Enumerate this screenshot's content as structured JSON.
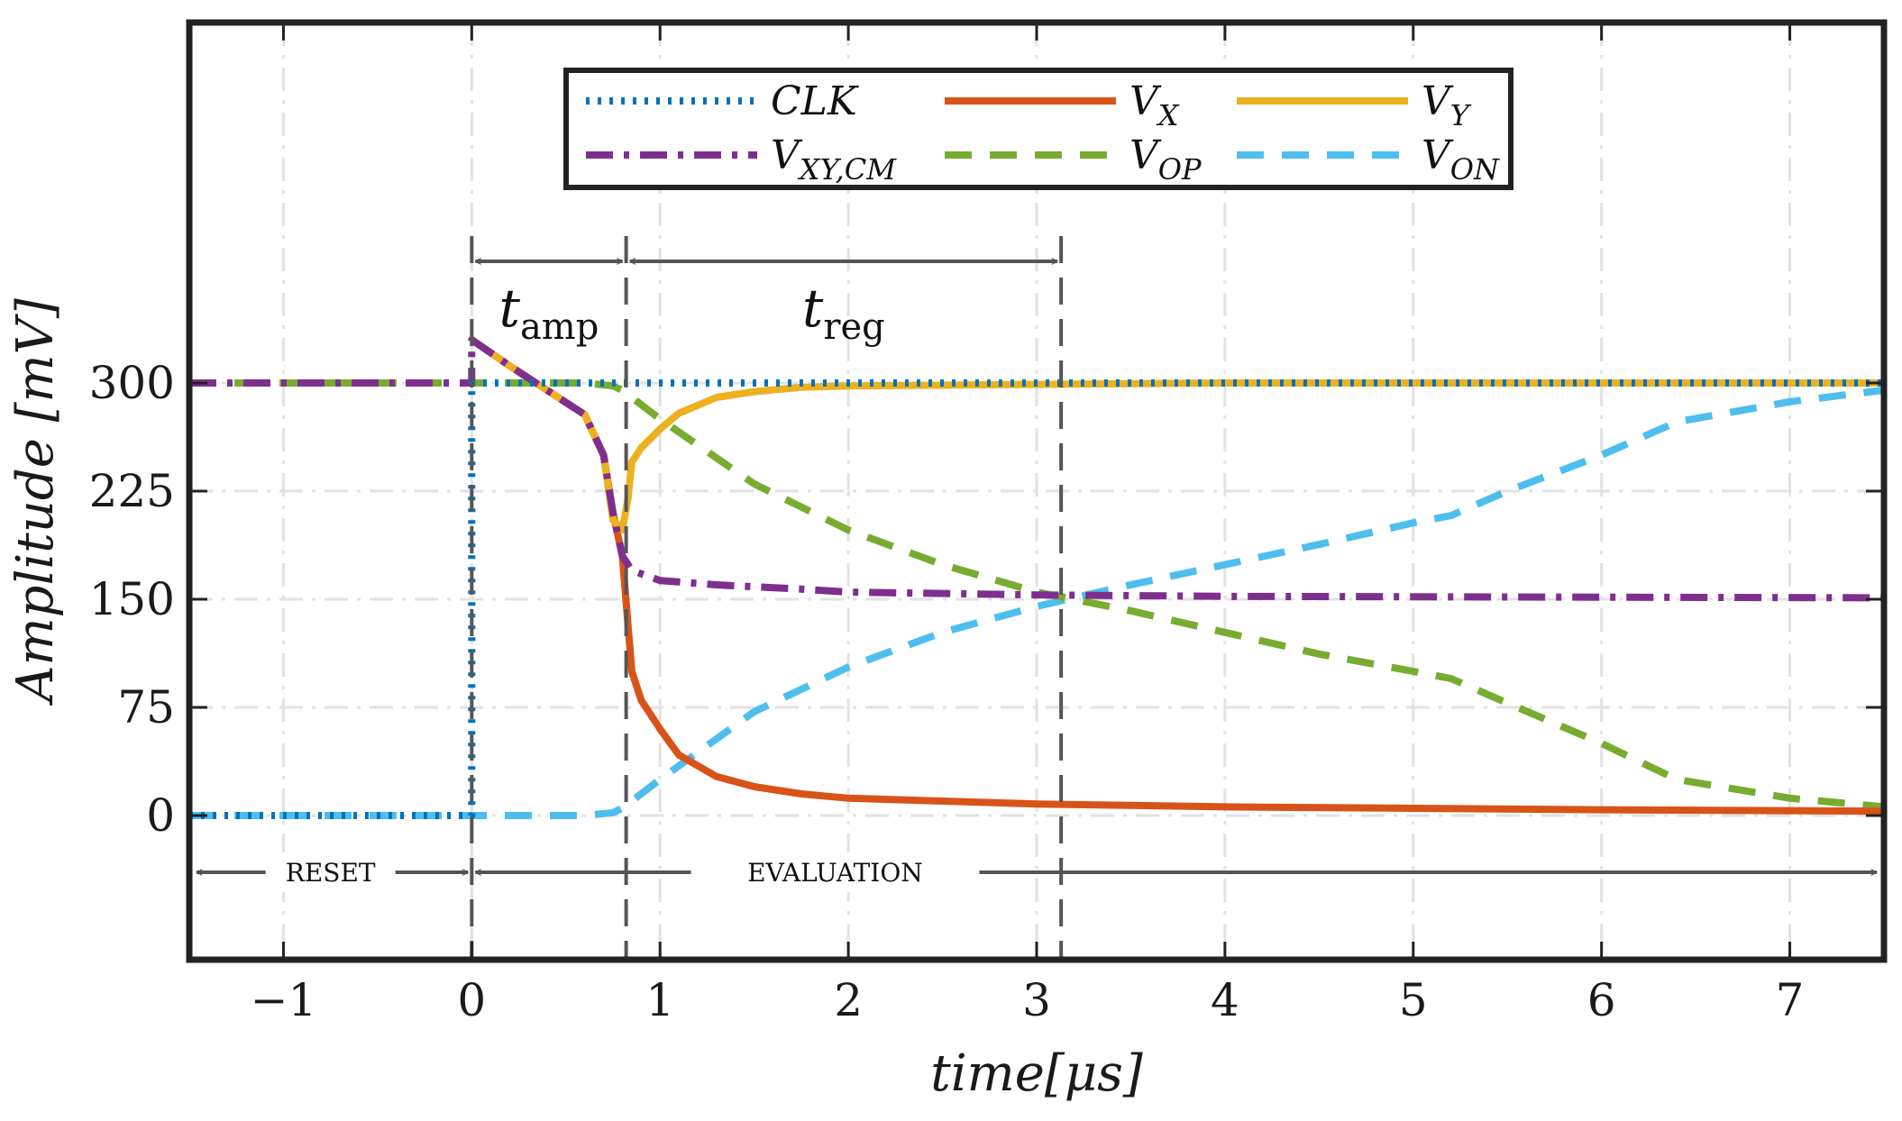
{
  "chart_data": {
    "type": "line",
    "xlabel": "time[μs]",
    "ylabel": "Amplitude [mV]",
    "xlim": [
      -1.5,
      7.5
    ],
    "ylim": [
      -100,
      550
    ],
    "x_ticks": [
      "−1",
      "0",
      "1",
      "2",
      "3",
      "4",
      "5",
      "6",
      "7"
    ],
    "x_tick_values": [
      -1,
      0,
      1,
      2,
      3,
      4,
      5,
      6,
      7
    ],
    "y_ticks": [
      "0",
      "75",
      "150",
      "225",
      "300"
    ],
    "y_tick_values": [
      0,
      75,
      150,
      225,
      300
    ],
    "grid": true,
    "legend_position": "top-center",
    "series": [
      {
        "name": "CLK",
        "legend_main": "CLK",
        "legend_sub": "",
        "color": "#0072BD",
        "dash": "dotted",
        "points": [
          [
            -1.5,
            0
          ],
          [
            0,
            0
          ],
          [
            0,
            300
          ],
          [
            7.5,
            300
          ]
        ]
      },
      {
        "name": "V_X",
        "legend_main": "V",
        "legend_sub": "X",
        "color": "#D95319",
        "dash": "solid",
        "points": [
          [
            0,
            330
          ],
          [
            0.2,
            312
          ],
          [
            0.4,
            295
          ],
          [
            0.6,
            278
          ],
          [
            0.7,
            250
          ],
          [
            0.75,
            210
          ],
          [
            0.8,
            180
          ],
          [
            0.85,
            100
          ],
          [
            0.9,
            80
          ],
          [
            1.0,
            60
          ],
          [
            1.1,
            42
          ],
          [
            1.3,
            27
          ],
          [
            1.5,
            20
          ],
          [
            1.75,
            15
          ],
          [
            2.0,
            12
          ],
          [
            2.5,
            10
          ],
          [
            3.0,
            8
          ],
          [
            4.0,
            6
          ],
          [
            5.0,
            5
          ],
          [
            6.0,
            4
          ],
          [
            7.5,
            3
          ]
        ]
      },
      {
        "name": "V_Y",
        "legend_main": "V",
        "legend_sub": "Y",
        "color": "#EDB120",
        "dash": "solid",
        "points": [
          [
            0,
            330
          ],
          [
            0.2,
            312
          ],
          [
            0.4,
            295
          ],
          [
            0.6,
            278
          ],
          [
            0.7,
            250
          ],
          [
            0.75,
            205
          ],
          [
            0.8,
            198
          ],
          [
            0.83,
            220
          ],
          [
            0.85,
            245
          ],
          [
            0.9,
            255
          ],
          [
            1.0,
            268
          ],
          [
            1.1,
            279
          ],
          [
            1.3,
            290
          ],
          [
            1.5,
            294
          ],
          [
            1.75,
            297
          ],
          [
            2.0,
            298
          ],
          [
            3.0,
            299
          ],
          [
            4.0,
            300
          ],
          [
            7.5,
            300
          ]
        ]
      },
      {
        "name": "V_XY,CM",
        "legend_main": "V",
        "legend_sub": "XY,CM",
        "color": "#7E2F8E",
        "dash": "dashdot",
        "points": [
          [
            -1.5,
            300
          ],
          [
            0,
            300
          ],
          [
            0,
            330
          ],
          [
            0.2,
            312
          ],
          [
            0.4,
            295
          ],
          [
            0.6,
            278
          ],
          [
            0.7,
            250
          ],
          [
            0.75,
            210
          ],
          [
            0.8,
            180
          ],
          [
            0.85,
            170
          ],
          [
            1.0,
            163
          ],
          [
            1.3,
            160
          ],
          [
            1.75,
            157
          ],
          [
            2.0,
            155
          ],
          [
            3.0,
            153
          ],
          [
            4.0,
            152
          ],
          [
            7.5,
            151
          ]
        ]
      },
      {
        "name": "V_OP",
        "legend_main": "V",
        "legend_sub": "OP",
        "color": "#77AC30",
        "dash": "dashed",
        "points": [
          [
            -1.5,
            300
          ],
          [
            0.6,
            300
          ],
          [
            0.75,
            298
          ],
          [
            0.8,
            295
          ],
          [
            1.0,
            275
          ],
          [
            1.5,
            230
          ],
          [
            2.0,
            198
          ],
          [
            2.5,
            174
          ],
          [
            3.0,
            155
          ],
          [
            3.5,
            142
          ],
          [
            4.0,
            127
          ],
          [
            4.5,
            112
          ],
          [
            5.0,
            100
          ],
          [
            5.2,
            95
          ],
          [
            5.5,
            78
          ],
          [
            6.0,
            50
          ],
          [
            6.4,
            25
          ],
          [
            7.0,
            12
          ],
          [
            7.5,
            6
          ]
        ]
      },
      {
        "name": "V_ON",
        "legend_main": "V",
        "legend_sub": "ON",
        "color": "#4DBEEE",
        "dash": "dashed",
        "points": [
          [
            -1.5,
            0
          ],
          [
            0.6,
            0
          ],
          [
            0.75,
            2
          ],
          [
            0.8,
            5
          ],
          [
            1.0,
            25
          ],
          [
            1.5,
            72
          ],
          [
            2.0,
            103
          ],
          [
            2.5,
            127
          ],
          [
            3.0,
            145
          ],
          [
            3.5,
            160
          ],
          [
            4.0,
            174
          ],
          [
            4.5,
            188
          ],
          [
            5.0,
            203
          ],
          [
            5.2,
            208
          ],
          [
            5.5,
            225
          ],
          [
            6.0,
            250
          ],
          [
            6.4,
            273
          ],
          [
            7.0,
            287
          ],
          [
            7.5,
            295
          ]
        ]
      }
    ],
    "annotations": {
      "t_amp": {
        "main": "t",
        "sub": "amp"
      },
      "t_reg": {
        "main": "t",
        "sub": "reg"
      },
      "t_amp_end": 0.82,
      "t_reg_end": 3.13,
      "reset_label": "RESET",
      "evaluation_label": "EVALUATION"
    }
  }
}
